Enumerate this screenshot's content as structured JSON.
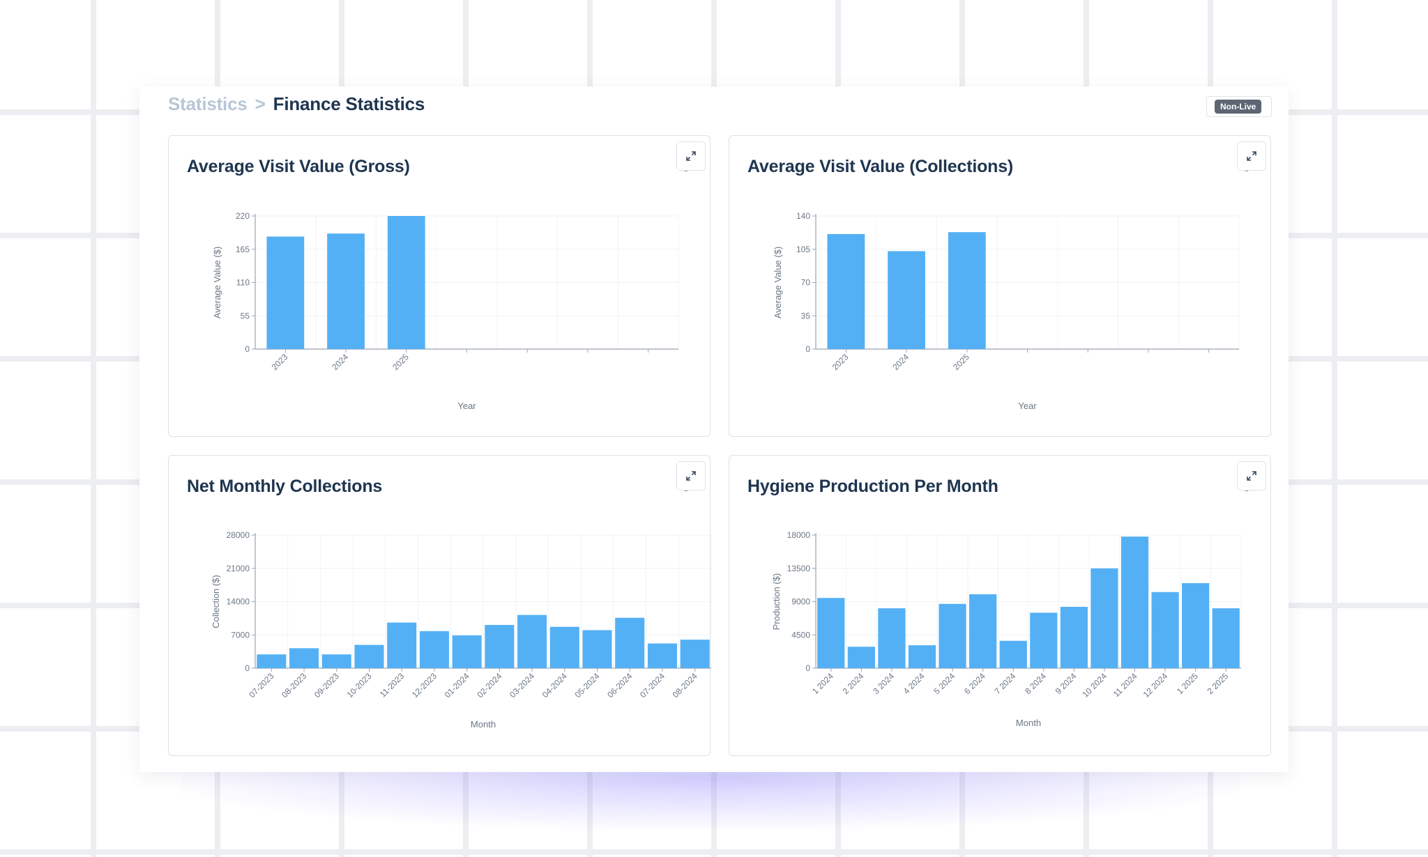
{
  "breadcrumb": {
    "root": "Statistics",
    "separator": ">",
    "current": "Finance Statistics"
  },
  "status_badge": "Non-Live",
  "colors": {
    "bar": "#54b0f5",
    "title": "#1f3550",
    "axis": "#9aa4b1"
  },
  "icons": {
    "expand": "expand-arrows-icon",
    "refresh": "refresh-icon"
  },
  "chart_data": [
    {
      "type": "bar",
      "title": "Average Visit Value (Gross)",
      "xlabel": "Year",
      "ylabel": "Average Value ($)",
      "categories": [
        "2023",
        "2024",
        "2025"
      ],
      "values": [
        186,
        191,
        220
      ],
      "ylim": [
        0,
        220
      ],
      "yticks": [
        "0",
        "55",
        "110",
        "165",
        "220"
      ],
      "grid": true
    },
    {
      "type": "bar",
      "title": "Average Visit Value (Collections)",
      "xlabel": "Year",
      "ylabel": "Average Value ($)",
      "categories": [
        "2023",
        "2024",
        "2025"
      ],
      "values": [
        121,
        103,
        123
      ],
      "ylim": [
        0,
        140
      ],
      "yticks": [
        "0",
        "35",
        "70",
        "105",
        "140"
      ],
      "grid": true
    },
    {
      "type": "bar",
      "title": "Net Monthly Collections",
      "xlabel": "Month",
      "ylabel": "Collection ($)",
      "categories": [
        "07-2023",
        "08-2023",
        "09-2023",
        "10-2023",
        "11-2023",
        "12-2023",
        "01-2024",
        "02-2024",
        "03-2024",
        "04-2024",
        "05-2024",
        "06-2024",
        "07-2024",
        "08-2024"
      ],
      "values": [
        2900,
        4200,
        2900,
        4900,
        9600,
        7800,
        6900,
        9100,
        11200,
        8700,
        8000,
        10600,
        5200,
        6000
      ],
      "ylim": [
        0,
        28000
      ],
      "yticks": [
        "0",
        "7000",
        "14000",
        "21000",
        "28000"
      ],
      "grid": true
    },
    {
      "type": "bar",
      "title": "Hygiene Production Per Month",
      "xlabel": "Month",
      "ylabel": "Production ($)",
      "categories": [
        "1 2024",
        "2 2024",
        "3 2024",
        "4 2024",
        "5 2024",
        "6 2024",
        "7 2024",
        "8 2024",
        "9 2024",
        "10 2024",
        "11 2024",
        "12 2024",
        "1 2025",
        "2 2025"
      ],
      "values": [
        9500,
        2900,
        8100,
        3100,
        8700,
        10000,
        3700,
        7500,
        8300,
        13500,
        17800,
        10300,
        11500,
        8100
      ],
      "ylim": [
        0,
        18000
      ],
      "yticks": [
        "0",
        "4500",
        "9000",
        "13500",
        "18000"
      ],
      "grid": true
    }
  ]
}
